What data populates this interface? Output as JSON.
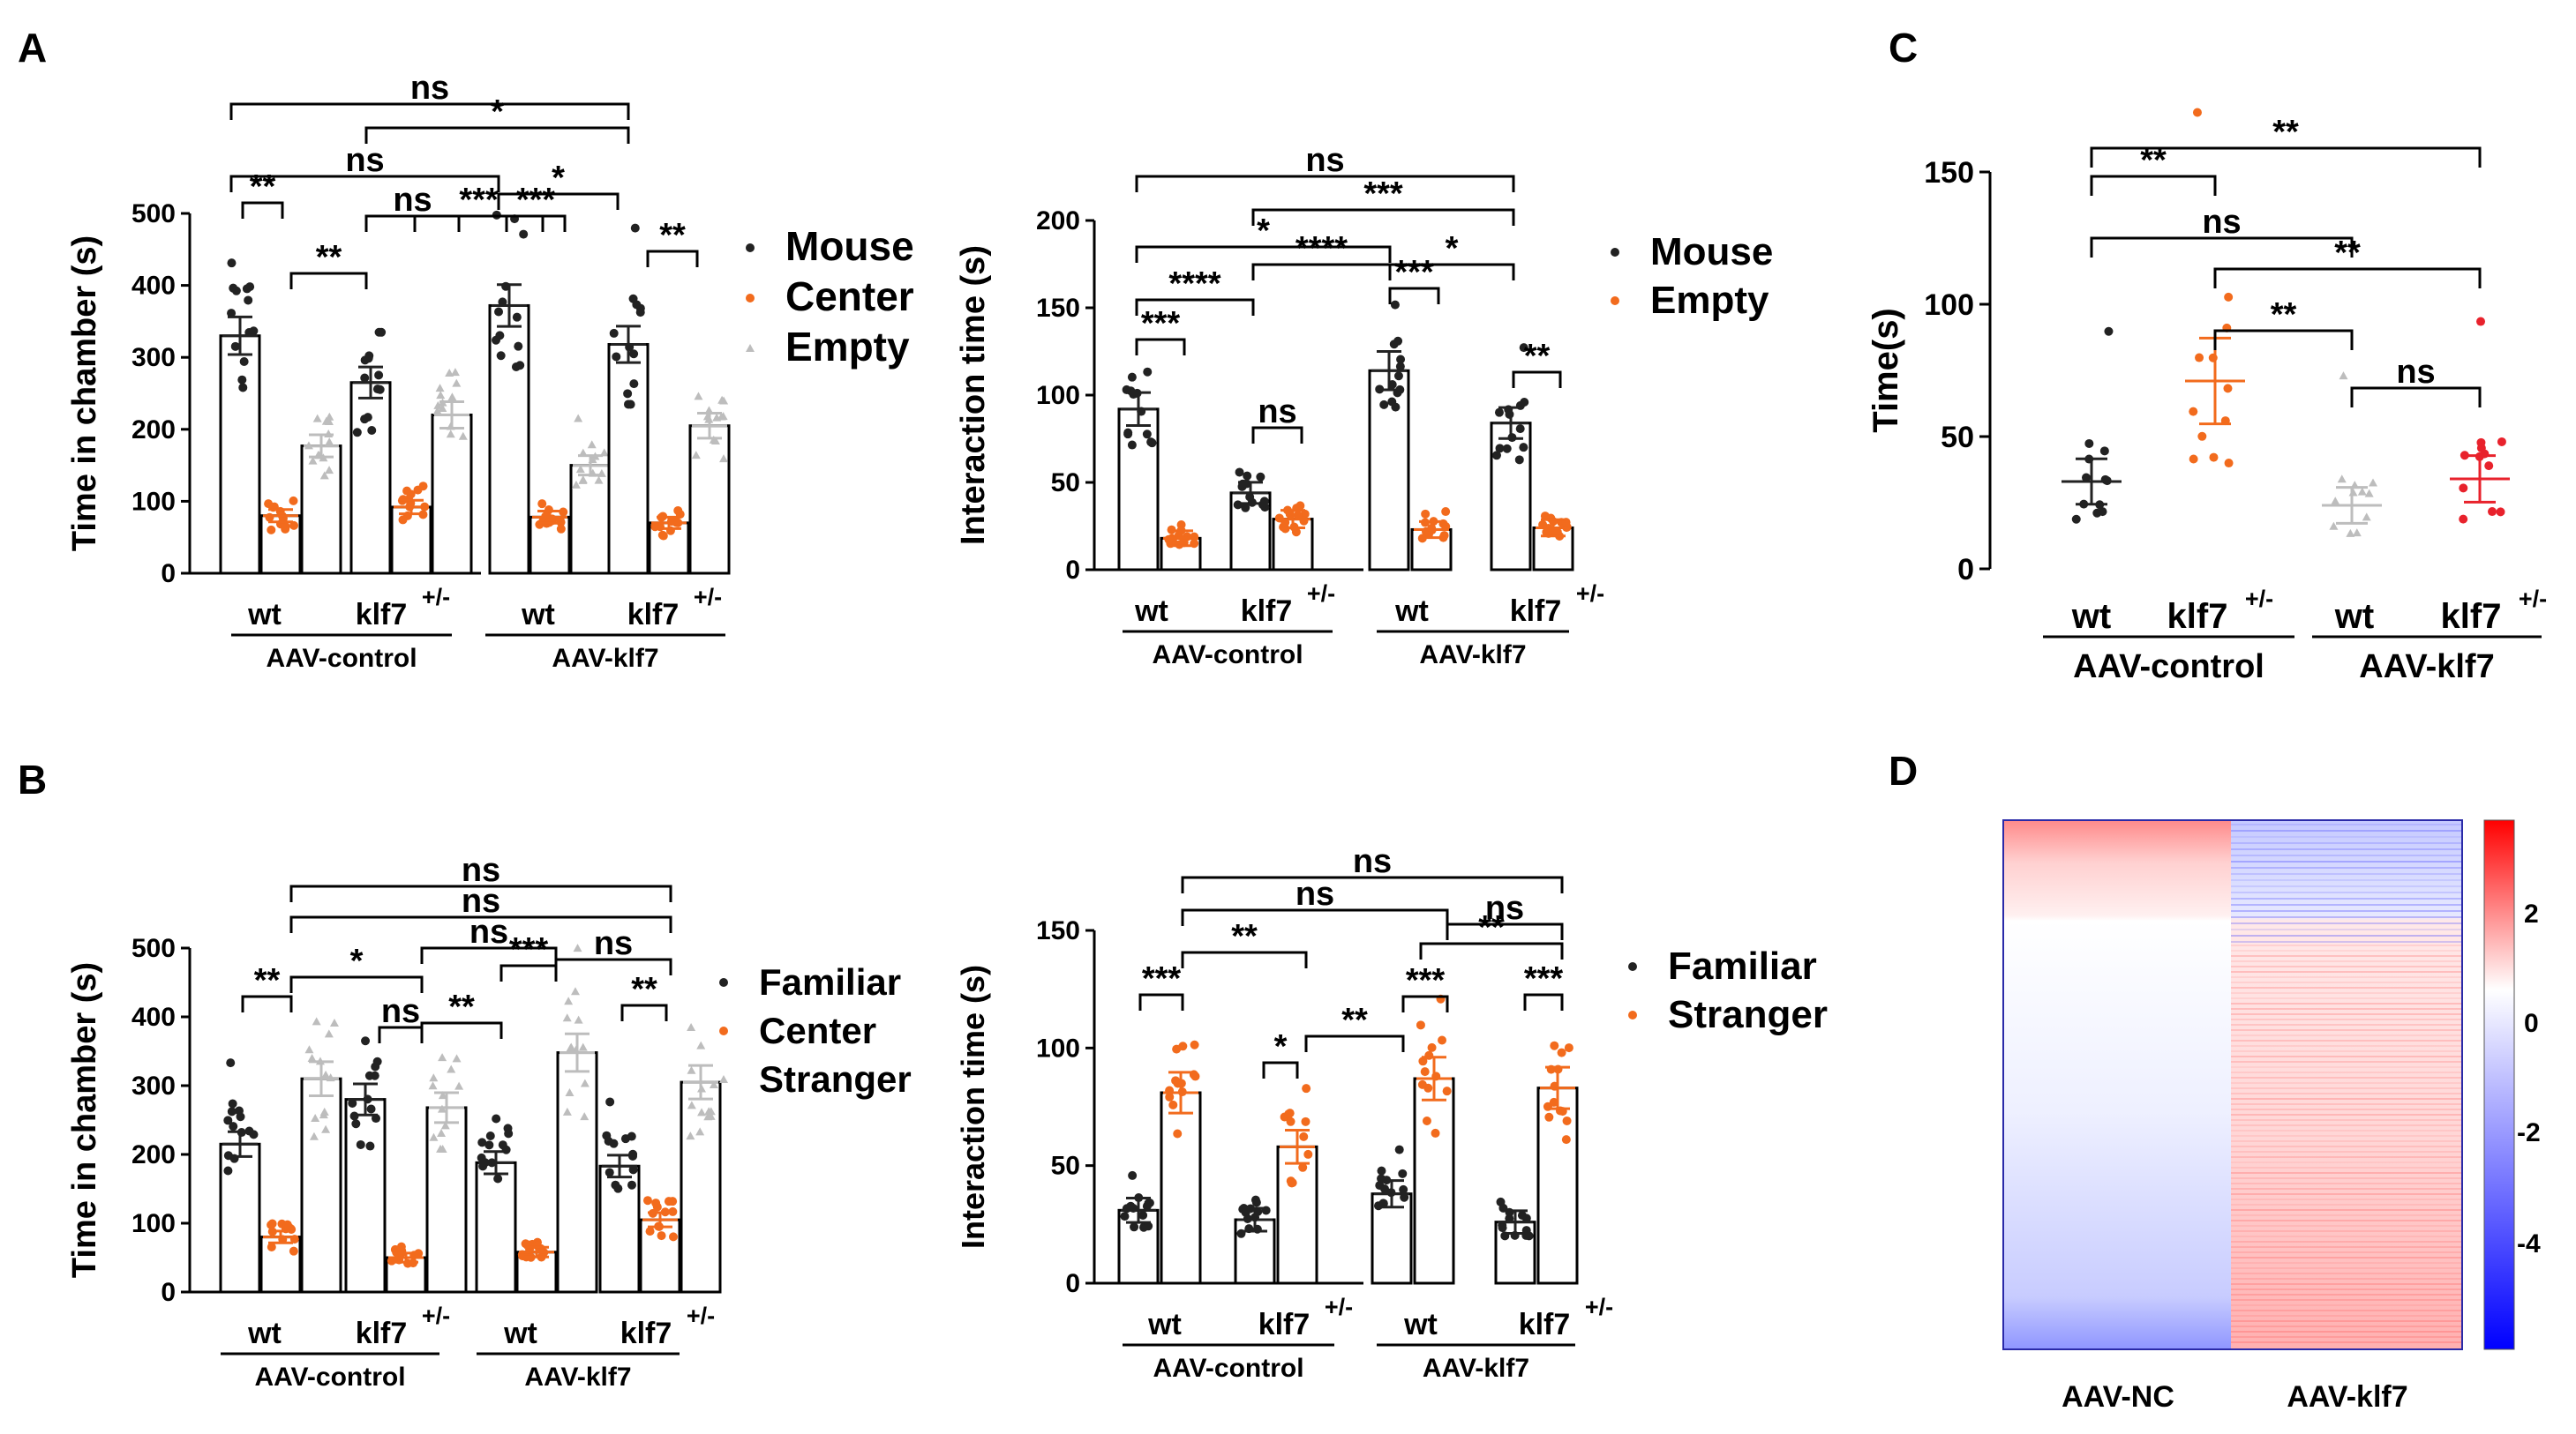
{
  "panel_labels": [
    "A",
    "B",
    "C",
    "D"
  ],
  "colors": {
    "black": "#222222",
    "orange": "#f26b1d",
    "gray": "#bdbdbd",
    "red": "#e8222c",
    "heat_pos": "#ff0000",
    "heat_neg": "#0000ff"
  },
  "chart_data": [
    {
      "id": "A1",
      "type": "bar",
      "ylabel": "Time in chamber (s)",
      "ylim": [
        0,
        500
      ],
      "yticks": [
        0,
        100,
        200,
        300,
        400,
        500
      ],
      "groups": [
        "wt",
        "klf7",
        "wt",
        "klf7"
      ],
      "superscript": "+/-",
      "conditions": [
        "AAV-control",
        "AAV-klf7"
      ],
      "series": [
        {
          "name": "Mouse",
          "values": [
            330,
            265,
            372,
            318
          ]
        },
        {
          "name": "Center",
          "values": [
            80,
            92,
            78,
            70
          ]
        },
        {
          "name": "Empty",
          "values": [
            177,
            220,
            150,
            205
          ]
        }
      ],
      "legend": [
        "Mouse",
        "Center",
        "Empty"
      ],
      "sig": [
        "**",
        "**",
        "ns",
        "***",
        "***",
        "**",
        "ns",
        "*",
        "ns",
        "*"
      ]
    },
    {
      "id": "A2",
      "type": "bar",
      "ylabel": "Interaction time (s)",
      "ylim": [
        0,
        200
      ],
      "yticks": [
        0,
        50,
        100,
        150,
        200
      ],
      "groups": [
        "wt",
        "klf7",
        "wt",
        "klf7"
      ],
      "superscript": "+/-",
      "conditions": [
        "AAV-control",
        "AAV-klf7"
      ],
      "series": [
        {
          "name": "Mouse",
          "values": [
            92,
            44,
            114,
            84
          ]
        },
        {
          "name": "Empty",
          "values": [
            18,
            29,
            23,
            24
          ]
        }
      ],
      "legend": [
        "Mouse",
        "Empty"
      ],
      "sig": [
        "***",
        "ns",
        "***",
        "**",
        "****",
        "****",
        "*",
        "*",
        "***",
        "ns"
      ]
    },
    {
      "id": "B1",
      "type": "bar",
      "ylabel": "Time in chamber (s)",
      "ylim": [
        0,
        500
      ],
      "yticks": [
        0,
        100,
        200,
        300,
        400,
        500
      ],
      "groups": [
        "wt",
        "klf7",
        "wt",
        "klf7"
      ],
      "superscript": "+/-",
      "conditions": [
        "AAV-control",
        "AAV-klf7"
      ],
      "series": [
        {
          "name": "Familiar",
          "values": [
            215,
            280,
            188,
            183
          ]
        },
        {
          "name": "Center",
          "values": [
            80,
            50,
            58,
            105
          ]
        },
        {
          "name": "Stranger",
          "values": [
            310,
            268,
            348,
            305
          ]
        }
      ],
      "legend": [
        "Familiar",
        "Center",
        "Stranger"
      ],
      "sig": [
        "**",
        "ns",
        "***",
        "**",
        "*",
        "**",
        "ns",
        "ns",
        "ns",
        "ns"
      ]
    },
    {
      "id": "B2",
      "type": "bar",
      "ylabel": "Interaction time (s)",
      "ylim": [
        0,
        150
      ],
      "yticks": [
        0,
        50,
        100,
        150
      ],
      "groups": [
        "wt",
        "klf7",
        "wt",
        "klf7"
      ],
      "superscript": "+/-",
      "conditions": [
        "AAV-control",
        "AAV-klf7"
      ],
      "series": [
        {
          "name": "Familiar",
          "values": [
            31,
            27,
            38,
            26
          ]
        },
        {
          "name": "Stranger",
          "values": [
            81,
            58,
            87,
            83
          ]
        }
      ],
      "legend": [
        "Familiar",
        "Stranger"
      ],
      "sig": [
        "***",
        "*",
        "***",
        "***",
        "**",
        "**",
        "**",
        "ns",
        "ns",
        "ns"
      ]
    },
    {
      "id": "C",
      "type": "scatter",
      "ylabel": "Time(s)",
      "ylim": [
        0,
        150
      ],
      "yticks": [
        0,
        50,
        100,
        150
      ],
      "groups": [
        "wt",
        "klf7",
        "wt",
        "klf7"
      ],
      "superscript": "+/-",
      "conditions": [
        "AAV-control",
        "AAV-klf7"
      ],
      "means": [
        33,
        71,
        24,
        34
      ],
      "sig": [
        "**",
        "**",
        "ns",
        "**",
        "**",
        "ns"
      ]
    },
    {
      "id": "D",
      "type": "heatmap",
      "columns": [
        "AAV-NC",
        "AAV-klf7"
      ],
      "colorbar_ticks": [
        "2",
        "0",
        "-2",
        "-4"
      ]
    }
  ]
}
